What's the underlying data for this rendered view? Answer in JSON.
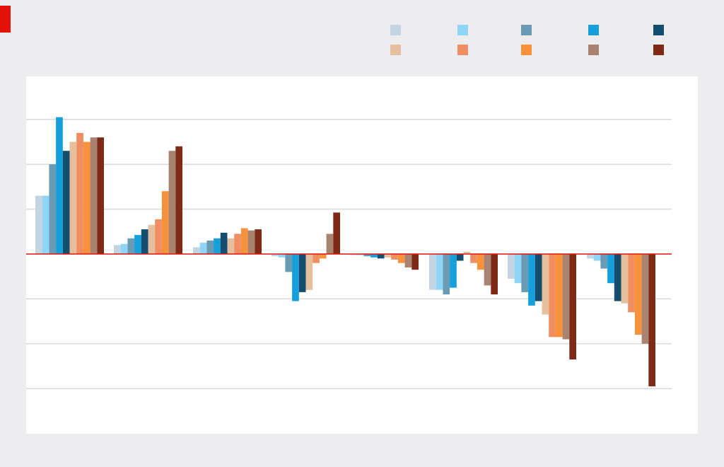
{
  "header": {
    "title": "",
    "subtitle": ""
  },
  "colors": {
    "background": "#ededf0",
    "plot_background": "#ffffff",
    "accent": "#e3120b",
    "gridline": "#d9d9de",
    "zero_line": "#e3120b"
  },
  "chart_data": {
    "type": "bar",
    "title": "",
    "xlabel": "",
    "ylabel": "",
    "ylim": [
      -60,
      60
    ],
    "y_ticks": [
      -60,
      -40,
      -20,
      0,
      20,
      40,
      60
    ],
    "y_tick_labels": [
      "",
      "",
      "",
      "",
      "",
      "",
      ""
    ],
    "grid": true,
    "legend_position": "top-right",
    "categories": [
      "",
      "",
      "",
      "",
      "",
      "",
      "",
      "",
      ""
    ],
    "series": [
      {
        "name": "",
        "color": "#c3d5e3",
        "values": [
          26,
          4,
          3,
          -1,
          -0.5,
          -16,
          -11,
          -2,
          0
        ]
      },
      {
        "name": "",
        "color": "#8fd5f5",
        "values": [
          26,
          4.5,
          5,
          -1.5,
          -0.5,
          -16,
          -13,
          -3,
          0
        ]
      },
      {
        "name": "",
        "color": "#6a9bb4",
        "values": [
          40,
          7,
          6,
          -8,
          -1,
          -18,
          -17,
          -6.5,
          0
        ]
      },
      {
        "name": "",
        "color": "#15a0dc",
        "values": [
          61,
          8.5,
          7,
          -21,
          -1.5,
          -15,
          -23,
          -13,
          0
        ]
      },
      {
        "name": "",
        "color": "#134e6f",
        "values": [
          46,
          11,
          9.5,
          -17,
          -2,
          -3,
          -21,
          -21,
          0
        ]
      },
      {
        "name": "",
        "color": "#e6c09e",
        "values": [
          50,
          13,
          7,
          -16,
          -1.5,
          1,
          -27,
          -22,
          0
        ]
      },
      {
        "name": "",
        "color": "#ef8e63",
        "values": [
          54,
          15.5,
          9,
          -4,
          -2.5,
          -4,
          -37,
          -26,
          0
        ]
      },
      {
        "name": "",
        "color": "#f7923a",
        "values": [
          50,
          28,
          11.5,
          -2,
          -4,
          -7,
          -37,
          -36,
          0
        ]
      },
      {
        "name": "",
        "color": "#a88371",
        "values": [
          52,
          46,
          10.5,
          9,
          -6,
          -14,
          -38,
          -40,
          0
        ]
      },
      {
        "name": "",
        "color": "#7f2a17",
        "values": [
          52,
          48,
          11,
          18.5,
          -7,
          -18,
          -47,
          -59,
          0
        ]
      }
    ]
  }
}
